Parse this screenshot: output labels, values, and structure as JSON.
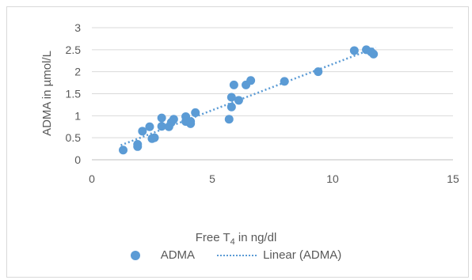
{
  "chart_data": {
    "type": "scatter",
    "title": "",
    "xlabel_prefix": "Free T",
    "xlabel_sub": "4",
    "xlabel_suffix": " in ng/dl",
    "ylabel": "ADMA in µmol/L",
    "xlim": [
      0,
      15
    ],
    "ylim": [
      0,
      3
    ],
    "xticks": [
      "0",
      "5",
      "10",
      "15"
    ],
    "yticks": [
      "0",
      "0.5",
      "1",
      "1.5",
      "2",
      "2.5",
      "3"
    ],
    "grid": "horizontal",
    "legend_position": "bottom",
    "color": "#5b9bd5",
    "series": [
      {
        "name": "ADMA",
        "points": [
          [
            1.3,
            0.22
          ],
          [
            1.9,
            0.3
          ],
          [
            1.9,
            0.35
          ],
          [
            2.1,
            0.65
          ],
          [
            2.4,
            0.75
          ],
          [
            2.5,
            0.48
          ],
          [
            2.6,
            0.5
          ],
          [
            2.9,
            0.76
          ],
          [
            2.9,
            0.95
          ],
          [
            3.2,
            0.75
          ],
          [
            3.3,
            0.85
          ],
          [
            3.4,
            0.92
          ],
          [
            3.9,
            0.87
          ],
          [
            3.9,
            0.98
          ],
          [
            4.1,
            0.82
          ],
          [
            4.1,
            0.87
          ],
          [
            4.3,
            1.07
          ],
          [
            5.7,
            0.92
          ],
          [
            5.8,
            1.2
          ],
          [
            5.8,
            1.42
          ],
          [
            5.9,
            1.7
          ],
          [
            6.1,
            1.35
          ],
          [
            6.4,
            1.7
          ],
          [
            6.6,
            1.8
          ],
          [
            8.0,
            1.78
          ],
          [
            9.4,
            2.0
          ],
          [
            10.9,
            2.48
          ],
          [
            11.4,
            2.5
          ],
          [
            11.6,
            2.45
          ],
          [
            11.7,
            2.4
          ]
        ]
      }
    ],
    "trendline": {
      "name": "Linear (ADMA)",
      "type": "linear",
      "from": [
        1.2,
        0.33
      ],
      "to": [
        11.8,
        2.55
      ]
    }
  }
}
